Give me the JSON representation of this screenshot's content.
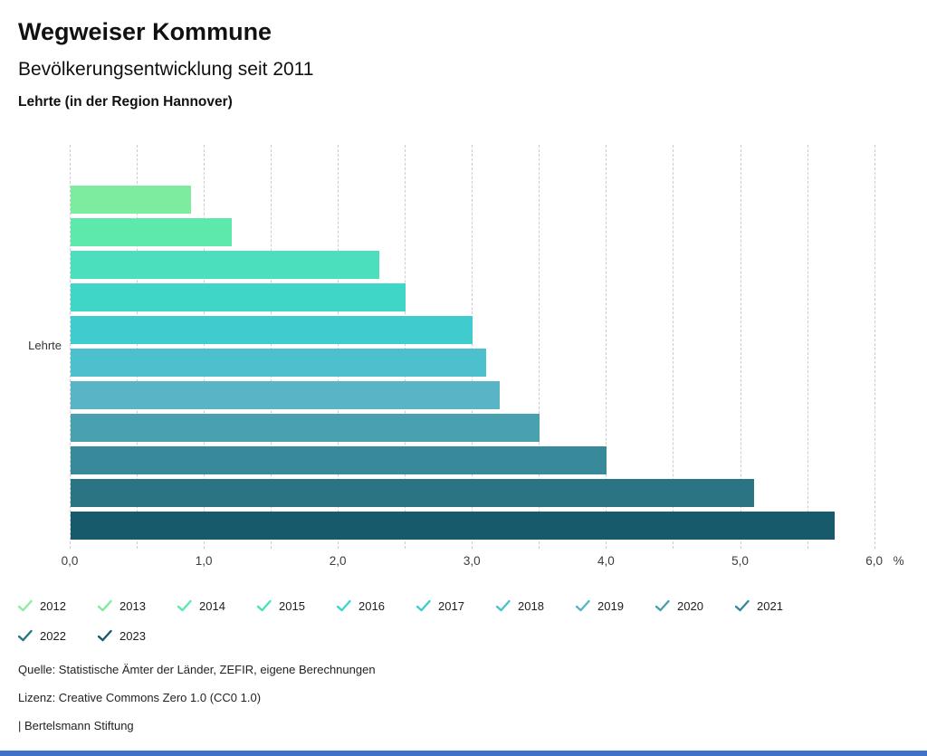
{
  "header": {
    "title": "Wegweiser Kommune",
    "subtitle": "Bevölkerungsentwicklung seit 2011",
    "region": "Lehrte (in der Region Hannover)"
  },
  "chart_data": {
    "type": "bar",
    "orientation": "horizontal",
    "category_label": "Lehrte",
    "unit": "%",
    "xlim": [
      0,
      6
    ],
    "x_tick_labels": [
      "0,0",
      "1,0",
      "2,0",
      "3,0",
      "4,0",
      "5,0",
      "6,0"
    ],
    "x_gridline_step": 0.5,
    "grid": "vertical-dashed",
    "legend_position": "bottom",
    "series": [
      {
        "year": "2012",
        "value": 0.0,
        "color": "#8eed9c"
      },
      {
        "year": "2013",
        "value": 0.9,
        "color": "#7dec9f"
      },
      {
        "year": "2014",
        "value": 1.2,
        "color": "#5ce9ab"
      },
      {
        "year": "2015",
        "value": 2.3,
        "color": "#4bdfbd"
      },
      {
        "year": "2016",
        "value": 2.5,
        "color": "#40d6c7"
      },
      {
        "year": "2017",
        "value": 3.0,
        "color": "#40cbce"
      },
      {
        "year": "2018",
        "value": 3.1,
        "color": "#4cc0cc"
      },
      {
        "year": "2019",
        "value": 3.2,
        "color": "#59b5c5"
      },
      {
        "year": "2020",
        "value": 3.5,
        "color": "#49a0af"
      },
      {
        "year": "2021",
        "value": 4.0,
        "color": "#38899a"
      },
      {
        "year": "2022",
        "value": 5.1,
        "color": "#2a7484"
      },
      {
        "year": "2023",
        "value": 5.7,
        "color": "#175a6b"
      }
    ]
  },
  "footer": {
    "source": "Quelle: Statistische Ämter der Länder, ZEFIR, eigene Berechnungen",
    "license": "Lizenz: Creative Commons Zero 1.0 (CC0 1.0)",
    "attribution": "| Bertelsmann Stiftung"
  },
  "colors": {
    "gridline": "#cccccc",
    "axis_text": "#3c3c3c",
    "bottom_bar": "#3e73c8"
  }
}
